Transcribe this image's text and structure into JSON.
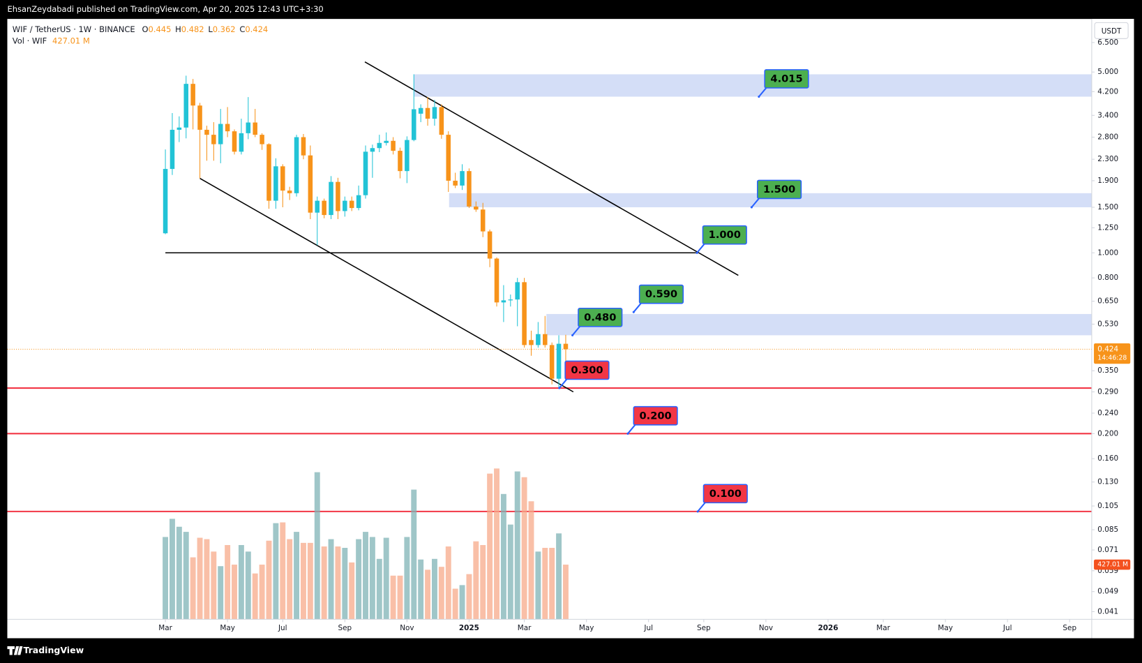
{
  "header": {
    "publisher": "EhsanZeydabadi published on TradingView.com, Apr 20, 2025 12:43 UTC+3:30"
  },
  "chart_data": {
    "type": "candlestick",
    "title": "WIF / TetherUS · 1W · BINANCE",
    "ohlc_letters": [
      "O",
      "H",
      "L",
      "C"
    ],
    "x": [
      0,
      1,
      2,
      3,
      4,
      5,
      6,
      7,
      8,
      9,
      10,
      11,
      12,
      13,
      14,
      15,
      16,
      17,
      18,
      19,
      20,
      21,
      22,
      23,
      24,
      25,
      26,
      27,
      28,
      29,
      30,
      31,
      32,
      33,
      34,
      35,
      36,
      37,
      38,
      39,
      40,
      41,
      42,
      43,
      44,
      45,
      46,
      47,
      48,
      49,
      50,
      51,
      52,
      53,
      54,
      55,
      56,
      57,
      58
    ],
    "xlim": [
      -22.9,
      134.2
    ],
    "xticks": [
      {
        "value": 0,
        "label": "Mar"
      },
      {
        "value": 9,
        "label": "May"
      },
      {
        "value": 17,
        "label": "Jul"
      },
      {
        "value": 26,
        "label": "Sep"
      },
      {
        "value": 35,
        "label": "Nov"
      },
      {
        "value": 44,
        "label": "2025"
      },
      {
        "value": 52,
        "label": "Mar"
      },
      {
        "value": 61,
        "label": "May"
      },
      {
        "value": 70,
        "label": "Jul"
      },
      {
        "value": 78,
        "label": "Sep"
      },
      {
        "value": 87,
        "label": "Nov"
      },
      {
        "value": 96,
        "label": "2026"
      },
      {
        "value": 104,
        "label": "Mar"
      },
      {
        "value": 113,
        "label": "May"
      },
      {
        "value": 122,
        "label": "Jul"
      },
      {
        "value": 131,
        "label": "Sep"
      }
    ],
    "log_scale": true,
    "axis_unit": "USDT",
    "ylim": [
      0.0383,
      8.02
    ],
    "yticks": [
      {
        "value": 6.5,
        "label": "6.500"
      },
      {
        "value": 5,
        "label": "5.000"
      },
      {
        "value": 4.2,
        "label": "4.200"
      },
      {
        "value": 3.4,
        "label": "3.400"
      },
      {
        "value": 2.8,
        "label": "2.800"
      },
      {
        "value": 2.3,
        "label": "2.300"
      },
      {
        "value": 1.9,
        "label": "1.900"
      },
      {
        "value": 1.5,
        "label": "1.500"
      },
      {
        "value": 1.25,
        "label": "1.250"
      },
      {
        "value": 1,
        "label": "1.000"
      },
      {
        "value": 0.8,
        "label": "0.800"
      },
      {
        "value": 0.65,
        "label": "0.650"
      },
      {
        "value": 0.53,
        "label": "0.530"
      },
      {
        "value": 0.35,
        "label": "0.350"
      },
      {
        "value": 0.29,
        "label": "0.290"
      },
      {
        "value": 0.24,
        "label": "0.240"
      },
      {
        "value": 0.2,
        "label": "0.200"
      },
      {
        "value": 0.16,
        "label": "0.160"
      },
      {
        "value": 0.13,
        "label": "0.130"
      },
      {
        "value": 0.105,
        "label": "0.105"
      },
      {
        "value": 0.085,
        "label": "0.085"
      },
      {
        "value": 0.071,
        "label": "0.071"
      },
      {
        "value": 0.059,
        "label": "0.059"
      },
      {
        "value": 0.049,
        "label": "0.049"
      },
      {
        "value": 0.041,
        "label": "0.041"
      }
    ],
    "y2lim": [
      0,
      4690
    ],
    "up_color": "#22c3d6",
    "down_color": "#f7931a",
    "series": [
      {
        "name": "WIF",
        "open": [
          1.19,
          2.11,
          2.99,
          3.05,
          4.5,
          3.71,
          2.99,
          2.86,
          2.63,
          3.15,
          2.95,
          2.46,
          2.9,
          3.19,
          2.86,
          2.63,
          1.59,
          2.16,
          1.74,
          1.7,
          2.8,
          2.38,
          1.43,
          1.59,
          1.4,
          1.88,
          1.45,
          1.59,
          1.49,
          1.67,
          2.46,
          2.54,
          2.66,
          2.71,
          2.48,
          2.07,
          2.73,
          3.45,
          3.63,
          3.3,
          3.66,
          2.86,
          1.9,
          1.82,
          2.07,
          1.51,
          1.47,
          1.21,
          0.95,
          0.643,
          0.655,
          0.66,
          0.77,
          0.46,
          0.44,
          0.485,
          0.44,
          0.326,
          0.445
        ],
        "high": [
          2.51,
          3.47,
          3.37,
          4.84,
          4.7,
          3.8,
          3.1,
          3.2,
          3.6,
          3.66,
          3.0,
          3.3,
          4.0,
          3.6,
          2.9,
          2.65,
          2.32,
          2.2,
          1.8,
          2.86,
          2.88,
          2.6,
          1.65,
          1.62,
          1.98,
          1.95,
          1.65,
          1.65,
          1.82,
          2.6,
          2.62,
          2.86,
          2.92,
          2.8,
          2.55,
          2.82,
          4.9,
          3.75,
          4.0,
          3.9,
          3.75,
          2.95,
          2.04,
          2.2,
          2.12,
          1.58,
          1.56,
          1.23,
          0.96,
          0.75,
          0.69,
          0.8,
          0.8,
          0.5,
          0.54,
          0.57,
          0.45,
          0.48,
          0.482
        ],
        "low": [
          1.18,
          2.0,
          2.68,
          2.77,
          3.0,
          1.94,
          2.27,
          2.27,
          2.22,
          2.8,
          2.4,
          2.4,
          2.75,
          2.8,
          2.5,
          1.48,
          1.48,
          1.5,
          1.6,
          1.65,
          2.3,
          1.35,
          1.07,
          1.36,
          1.35,
          1.35,
          1.38,
          1.45,
          1.46,
          1.62,
          1.95,
          2.45,
          2.6,
          2.4,
          1.94,
          1.86,
          2.7,
          3.2,
          3.1,
          3.1,
          2.76,
          1.72,
          1.78,
          1.75,
          1.49,
          1.44,
          1.15,
          0.88,
          0.62,
          0.54,
          0.62,
          0.52,
          0.43,
          0.4,
          0.43,
          0.43,
          0.31,
          0.3,
          0.362
        ],
        "close": [
          2.11,
          2.99,
          3.05,
          4.5,
          3.71,
          2.99,
          2.86,
          2.63,
          3.15,
          2.95,
          2.46,
          2.9,
          3.19,
          2.86,
          2.63,
          1.59,
          2.16,
          1.74,
          1.7,
          2.8,
          2.38,
          1.43,
          1.59,
          1.4,
          1.88,
          1.45,
          1.59,
          1.49,
          1.67,
          2.46,
          2.54,
          2.66,
          2.71,
          2.48,
          2.07,
          2.73,
          3.59,
          3.63,
          3.3,
          3.66,
          2.86,
          1.9,
          1.82,
          2.07,
          1.51,
          1.47,
          1.21,
          0.95,
          0.643,
          0.655,
          0.66,
          0.77,
          0.44,
          0.44,
          0.485,
          0.44,
          0.326,
          0.445,
          0.424
        ]
      },
      {
        "name": "Vol · WIF",
        "axis": "y2",
        "values": [
          643,
          785,
          723,
          683,
          484,
          637,
          626,
          529,
          415,
          580,
          427,
          580,
          529,
          358,
          427,
          614,
          751,
          757,
          626,
          683,
          597,
          597,
          1149,
          569,
          626,
          569,
          558,
          444,
          626,
          683,
          643,
          472,
          637,
          341,
          341,
          643,
          1013,
          467,
          387,
          472,
          410,
          569,
          239,
          267,
          353,
          609,
          580,
          1138,
          1178,
          979,
          740,
          1155,
          1110,
          922,
          529,
          558,
          558,
          671,
          427.01
        ],
        "value_labels": [
          null,
          null,
          null,
          null,
          null,
          null,
          null,
          null,
          null,
          null,
          null,
          null,
          null,
          null,
          null,
          null,
          null,
          null,
          null,
          null,
          null,
          null,
          null,
          null,
          null,
          null,
          null,
          null,
          null,
          null,
          null,
          null,
          null,
          null,
          null,
          null,
          null,
          null,
          null,
          null,
          null,
          null,
          null,
          null,
          null,
          null,
          null,
          null,
          null,
          null,
          null,
          null,
          null,
          null,
          null,
          null,
          null,
          null,
          "427.01 M"
        ]
      }
    ],
    "countdown": "14:46:28",
    "zones": [
      {
        "x": 36,
        "low": 4.015,
        "high": 4.9
      },
      {
        "x": 41.1,
        "low": 1.5,
        "high": 1.7
      },
      {
        "x": 55.2,
        "low": 0.48,
        "high": 0.58
      }
    ],
    "trendlines": [
      {
        "x": [
          28.9,
          83
        ],
        "y": [
          5.47,
          0.818
        ]
      },
      {
        "x": [
          5,
          59.1
        ],
        "y": [
          1.94,
          0.29
        ]
      },
      {
        "x": [
          0,
          76.9
        ],
        "y": [
          1,
          1
        ]
      }
    ],
    "annotations": [
      {
        "value": 4.015,
        "label": "4.015",
        "color": "#4caf50"
      },
      {
        "value": 1.5,
        "label": "1.500",
        "color": "#4caf50"
      },
      {
        "value": 1,
        "label": "1.000",
        "color": "#4caf50"
      },
      {
        "value": 0.59,
        "label": "0.590",
        "color": "#4caf50"
      },
      {
        "value": 0.48,
        "label": "0.480",
        "color": "#4caf50"
      },
      {
        "value": 0.3,
        "label": "0.300",
        "color": "#f23645"
      },
      {
        "value": 0.2,
        "label": "0.200",
        "color": "#f23645"
      },
      {
        "value": 0.1,
        "label": "0.100",
        "color": "#f23645"
      }
    ]
  },
  "footer": {
    "brand": "TradingView"
  }
}
